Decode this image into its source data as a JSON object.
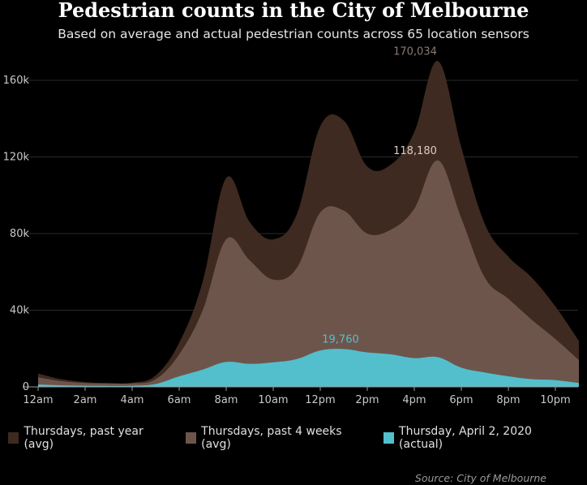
{
  "title": "Pedestrian counts in the City of Melbourne",
  "subtitle": "Based on average and actual pedestrian counts across 65 location sensors",
  "source": "Source: City of Melbourne",
  "colors": {
    "past_year": "#3e2a20",
    "past_4_weeks": "#6e554b",
    "actual": "#53bfcc",
    "grid": "#2a2a2a",
    "tick": "#c8c8c8",
    "annotation_dark": "#8a7a72",
    "annotation_light": "#d8ccc6",
    "annotation_actual": "#53bfcc"
  },
  "chart_data": {
    "type": "area",
    "x": [
      "12am",
      "1am",
      "2am",
      "3am",
      "4am",
      "5am",
      "6am",
      "7am",
      "8am",
      "9am",
      "10am",
      "11am",
      "12pm",
      "1pm",
      "2pm",
      "3pm",
      "4pm",
      "5pm",
      "6pm",
      "7pm",
      "8pm",
      "9pm",
      "10pm",
      "11pm"
    ],
    "x_tick_labels": [
      "12am",
      "2am",
      "4am",
      "6am",
      "8am",
      "10am",
      "12pm",
      "2pm",
      "4pm",
      "6pm",
      "8pm",
      "10pm"
    ],
    "y_ticks": [
      0,
      40000,
      80000,
      120000,
      160000
    ],
    "y_tick_labels": [
      "0",
      "40k",
      "80k",
      "120k",
      "160k"
    ],
    "ylim": [
      0,
      180000
    ],
    "grid": true,
    "legend_position": "bottom",
    "series": [
      {
        "name": "Thursdays, past year (avg)",
        "values": [
          7000,
          4000,
          2500,
          2000,
          2200,
          6000,
          23000,
          55000,
          109000,
          86000,
          77000,
          90000,
          136000,
          139000,
          115000,
          116000,
          133000,
          170034,
          125000,
          85000,
          68000,
          57000,
          42000,
          24000
        ]
      },
      {
        "name": "Thursdays, past 4 weeks (avg)",
        "values": [
          5000,
          3000,
          2000,
          1800,
          1800,
          4000,
          17000,
          40000,
          77000,
          66000,
          56000,
          62000,
          91000,
          92000,
          80000,
          82000,
          93000,
          118180,
          88000,
          57000,
          46000,
          35000,
          25000,
          14000
        ]
      },
      {
        "name": "Thursday, April 2, 2020 (actual)",
        "values": [
          1200,
          800,
          600,
          500,
          600,
          1500,
          5500,
          9000,
          13000,
          12000,
          12800,
          14500,
          19000,
          19760,
          18000,
          17000,
          15000,
          15500,
          10000,
          7500,
          5500,
          4000,
          3500,
          2000
        ]
      }
    ],
    "annotations": [
      {
        "series": 0,
        "index": 17,
        "text": "170,034"
      },
      {
        "series": 1,
        "index": 17,
        "text": "118,180"
      },
      {
        "series": 2,
        "index": 13,
        "text": "19,760"
      }
    ]
  }
}
